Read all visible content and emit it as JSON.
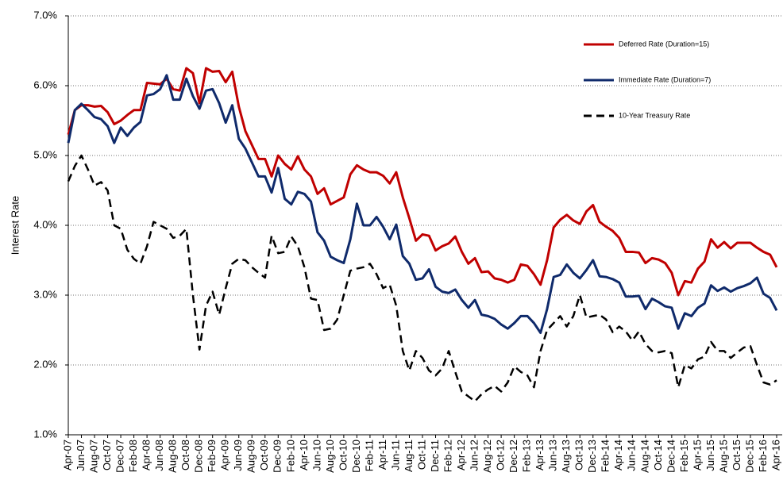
{
  "chart_data": {
    "type": "line",
    "y_label": "Interest Rate",
    "categories": [
      "Apr-07",
      null,
      "Jun-07",
      null,
      "Aug-07",
      null,
      "Oct-07",
      null,
      "Dec-07",
      null,
      "Feb-08",
      null,
      "Apr-08",
      null,
      "Jun-08",
      null,
      "Aug-08",
      null,
      "Oct-08",
      null,
      "Dec-08",
      null,
      "Feb-09",
      null,
      "Apr-09",
      null,
      "Jun-09",
      null,
      "Aug-09",
      null,
      "Oct-09",
      null,
      "Dec-09",
      null,
      "Feb-10",
      null,
      "Apr-10",
      null,
      "Jun-10",
      null,
      "Aug-10",
      null,
      "Oct-10",
      null,
      "Dec-10",
      null,
      "Feb-11",
      null,
      "Apr-11",
      null,
      "Jun-11",
      null,
      "Aug-11",
      null,
      "Oct-11",
      null,
      "Dec-11",
      null,
      "Feb-12",
      null,
      "Apr-12",
      null,
      "Jun-12",
      null,
      "Aug-12",
      null,
      "Oct-12",
      null,
      "Dec-12",
      null,
      "Feb-13",
      null,
      "Apr-13",
      null,
      "Jun-13",
      null,
      "Aug-13",
      null,
      "Oct-13",
      null,
      "Dec-13",
      null,
      "Feb-14",
      null,
      "Apr-14",
      null,
      "Jun-14",
      null,
      "Aug-14",
      null,
      "Oct-14",
      null,
      "Dec-14",
      null,
      "Feb-15",
      null,
      "Apr-15",
      null,
      "Jun-15",
      null,
      "Aug-15",
      null,
      "Oct-15",
      null,
      "Dec-15",
      null,
      "Feb-16",
      null,
      "Apr-16"
    ],
    "series": [
      {
        "name": "Deferred Rate (Duration=15)",
        "color": "#c00000",
        "dash": "solid",
        "values": [
          5.3,
          5.65,
          5.72,
          5.72,
          5.7,
          5.71,
          5.62,
          5.45,
          5.5,
          5.58,
          5.65,
          5.65,
          6.04,
          6.03,
          6.02,
          6.1,
          5.95,
          5.93,
          6.25,
          6.18,
          5.75,
          6.25,
          6.2,
          6.21,
          6.05,
          6.2,
          5.7,
          5.35,
          5.15,
          4.95,
          4.95,
          4.7,
          5.0,
          4.88,
          4.8,
          4.99,
          4.8,
          4.7,
          4.45,
          4.53,
          4.3,
          4.35,
          4.4,
          4.73,
          4.86,
          4.8,
          4.76,
          4.76,
          4.71,
          4.6,
          4.76,
          4.4,
          4.1,
          3.78,
          3.87,
          3.85,
          3.64,
          3.7,
          3.74,
          3.84,
          3.62,
          3.45,
          3.53,
          3.33,
          3.34,
          3.24,
          3.22,
          3.18,
          3.22,
          3.44,
          3.42,
          3.3,
          3.15,
          3.5,
          3.97,
          4.08,
          4.15,
          4.07,
          4.02,
          4.2,
          4.29,
          4.05,
          3.98,
          3.92,
          3.82,
          3.62,
          3.62,
          3.61,
          3.46,
          3.53,
          3.51,
          3.46,
          3.32,
          3.0,
          3.2,
          3.18,
          3.38,
          3.48,
          3.8,
          3.68,
          3.76,
          3.67,
          3.75,
          3.75,
          3.75,
          3.68,
          3.62,
          3.58,
          3.4
        ]
      },
      {
        "name": "Immediate Rate (Duration=7)",
        "color": "#0f2a6b",
        "dash": "solid",
        "values": [
          5.18,
          5.65,
          5.74,
          5.65,
          5.55,
          5.52,
          5.42,
          5.18,
          5.4,
          5.28,
          5.4,
          5.48,
          5.86,
          5.88,
          5.95,
          6.15,
          5.8,
          5.8,
          6.1,
          5.85,
          5.67,
          5.93,
          5.95,
          5.75,
          5.47,
          5.72,
          5.24,
          5.1,
          4.9,
          4.7,
          4.7,
          4.47,
          4.82,
          4.38,
          4.3,
          4.48,
          4.45,
          4.34,
          3.9,
          3.78,
          3.55,
          3.5,
          3.46,
          3.8,
          4.31,
          4.0,
          4.0,
          4.12,
          3.98,
          3.8,
          4.01,
          3.56,
          3.45,
          3.22,
          3.24,
          3.37,
          3.12,
          3.05,
          3.03,
          3.08,
          2.93,
          2.82,
          2.93,
          2.72,
          2.7,
          2.66,
          2.58,
          2.52,
          2.6,
          2.7,
          2.7,
          2.6,
          2.46,
          2.8,
          3.26,
          3.29,
          3.44,
          3.32,
          3.24,
          3.36,
          3.5,
          3.27,
          3.26,
          3.23,
          3.18,
          2.98,
          2.98,
          2.99,
          2.8,
          2.95,
          2.9,
          2.84,
          2.82,
          2.52,
          2.74,
          2.7,
          2.82,
          2.88,
          3.14,
          3.06,
          3.11,
          3.05,
          3.1,
          3.13,
          3.17,
          3.25,
          3.02,
          2.96,
          2.78
        ]
      },
      {
        "name": "10-Year Treasury Rate",
        "color": "#000000",
        "dash": "dashed",
        "values": [
          4.63,
          4.85,
          5.0,
          4.8,
          4.57,
          4.62,
          4.5,
          4.0,
          3.95,
          3.65,
          3.52,
          3.45,
          3.7,
          4.05,
          4.0,
          3.95,
          3.82,
          3.85,
          3.95,
          3.0,
          2.22,
          2.85,
          3.05,
          2.72,
          3.1,
          3.45,
          3.52,
          3.5,
          3.4,
          3.32,
          3.25,
          3.85,
          3.6,
          3.62,
          3.84,
          3.7,
          3.4,
          2.95,
          2.93,
          2.5,
          2.52,
          2.65,
          3.0,
          3.35,
          3.38,
          3.4,
          3.45,
          3.3,
          3.1,
          3.15,
          2.85,
          2.2,
          1.92,
          2.2,
          2.1,
          1.92,
          1.85,
          1.95,
          2.2,
          1.9,
          1.62,
          1.55,
          1.48,
          1.58,
          1.65,
          1.7,
          1.62,
          1.75,
          1.98,
          1.9,
          1.85,
          1.68,
          2.2,
          2.5,
          2.6,
          2.7,
          2.55,
          2.7,
          3.0,
          2.68,
          2.7,
          2.72,
          2.65,
          2.47,
          2.55,
          2.48,
          2.35,
          2.48,
          2.3,
          2.2,
          2.18,
          2.2,
          2.17,
          1.68,
          2.0,
          1.95,
          2.08,
          2.12,
          2.33,
          2.2,
          2.2,
          2.1,
          2.18,
          2.25,
          2.27,
          2.0,
          1.75,
          1.72,
          1.78
        ]
      }
    ],
    "ylim": [
      1,
      7
    ],
    "yticks": [
      {
        "value": 1,
        "label": "1.0%"
      },
      {
        "value": 2,
        "label": "2.0%"
      },
      {
        "value": 3,
        "label": "3.0%"
      },
      {
        "value": 4,
        "label": "4.0%"
      },
      {
        "value": 5,
        "label": "5.0%"
      },
      {
        "value": 6,
        "label": "6.0%"
      },
      {
        "value": 7,
        "label": "7.0%"
      }
    ],
    "grid": true,
    "legend": "top-right"
  }
}
